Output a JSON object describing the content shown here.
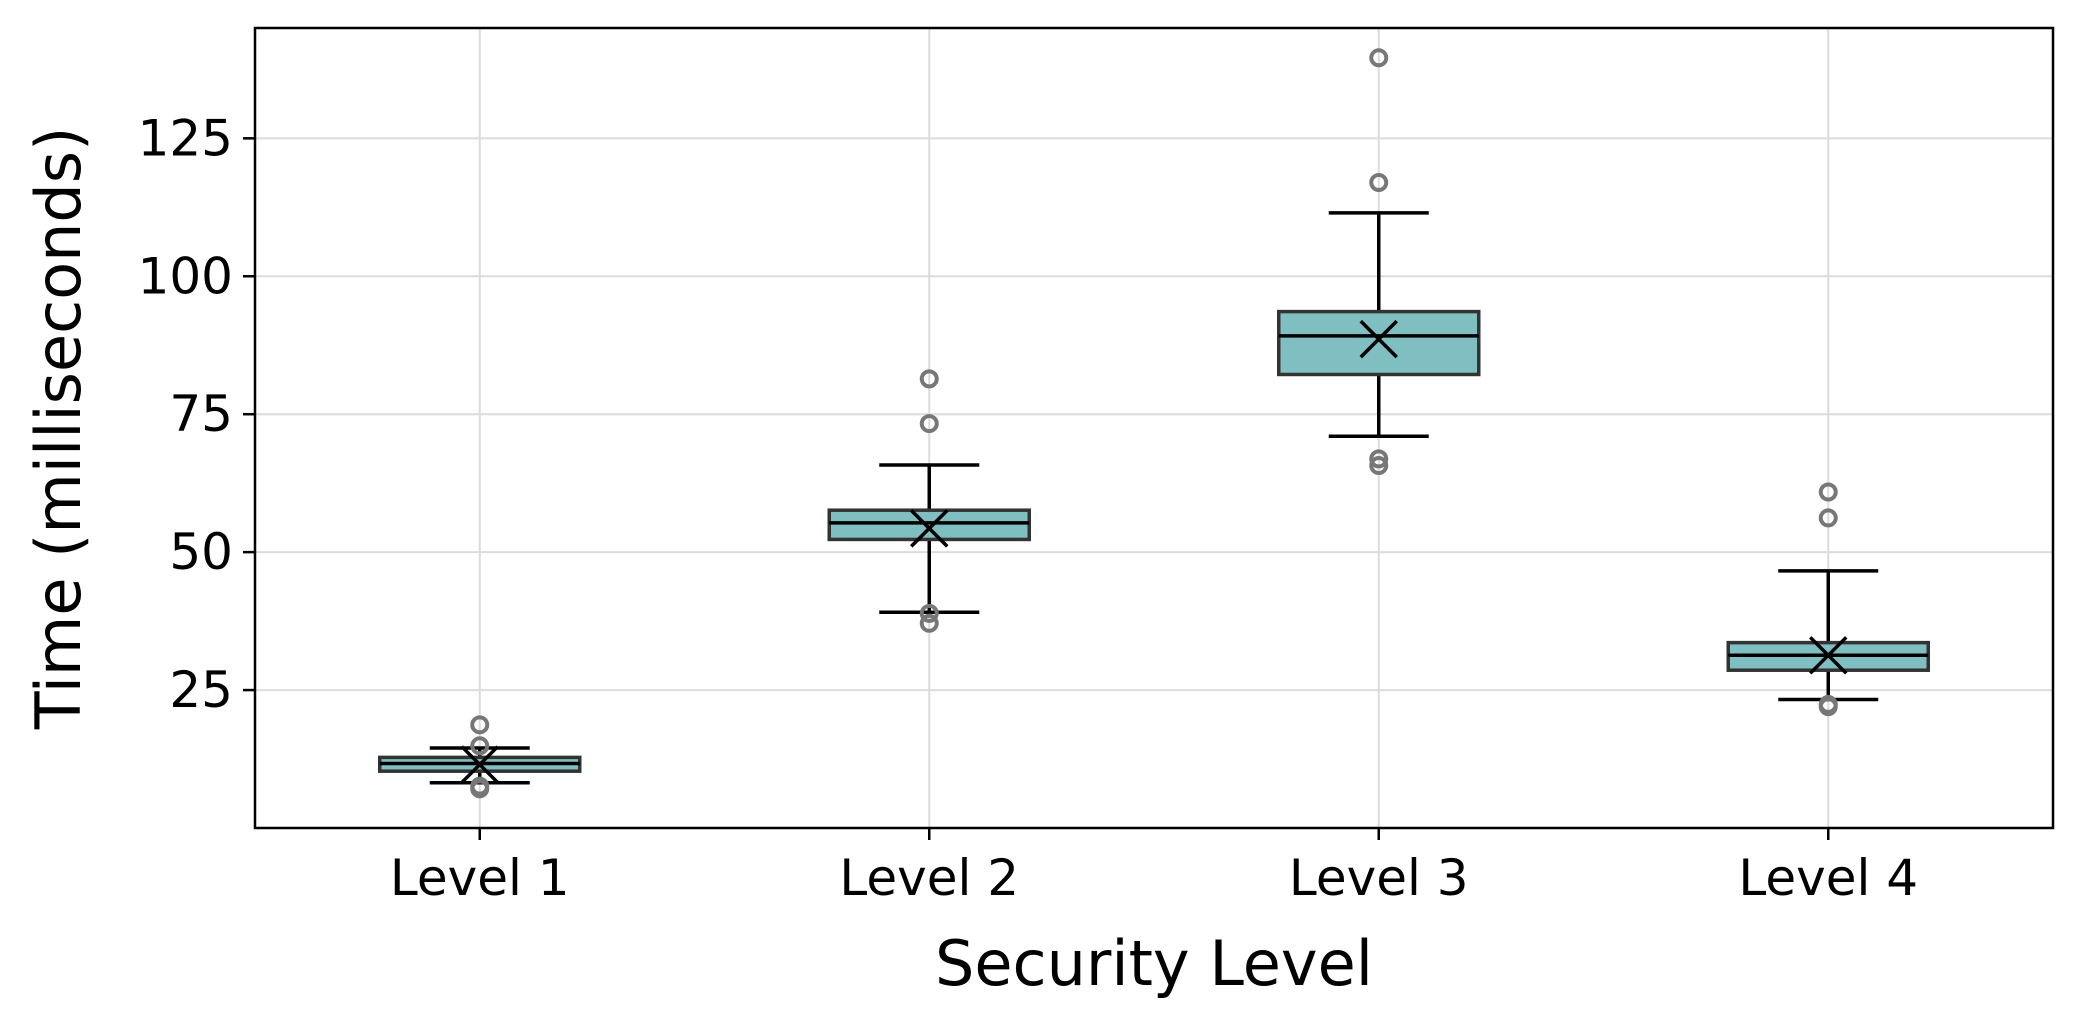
{
  "chart_data": {
    "type": "box",
    "title": "",
    "xlabel": "Security Level",
    "ylabel": "Time (milliseconds)",
    "ylim": [
      0,
      145
    ],
    "yticks": [
      25,
      50,
      75,
      100,
      125
    ],
    "grid": true,
    "box_color": "#7fbfc1",
    "categories": [
      "Level 1",
      "Level 2",
      "Level 3",
      "Level 4"
    ],
    "boxes": [
      {
        "name": "Level 1",
        "whislo": 8.2,
        "q1": 10.3,
        "median": 11.7,
        "q3": 12.8,
        "whishi": 14.5,
        "mean": 11.5,
        "fliers": [
          18.7,
          14.9,
          7.1,
          7.6
        ]
      },
      {
        "name": "Level 2",
        "whislo": 39.1,
        "q1": 52.3,
        "median": 55.3,
        "q3": 57.6,
        "whishi": 65.8,
        "mean": 54.3,
        "fliers": [
          81.4,
          73.3,
          38.9,
          37.1
        ]
      },
      {
        "name": "Level 3",
        "whislo": 71.0,
        "q1": 82.2,
        "median": 89.2,
        "q3": 93.6,
        "whishi": 111.5,
        "mean": 88.6,
        "fliers": [
          139.6,
          117.0,
          66.9,
          65.7
        ]
      },
      {
        "name": "Level 4",
        "whislo": 23.3,
        "q1": 28.6,
        "median": 31.3,
        "q3": 33.6,
        "whishi": 46.6,
        "mean": 31.3,
        "fliers": [
          60.9,
          56.2,
          22.0,
          22.4
        ]
      }
    ]
  }
}
